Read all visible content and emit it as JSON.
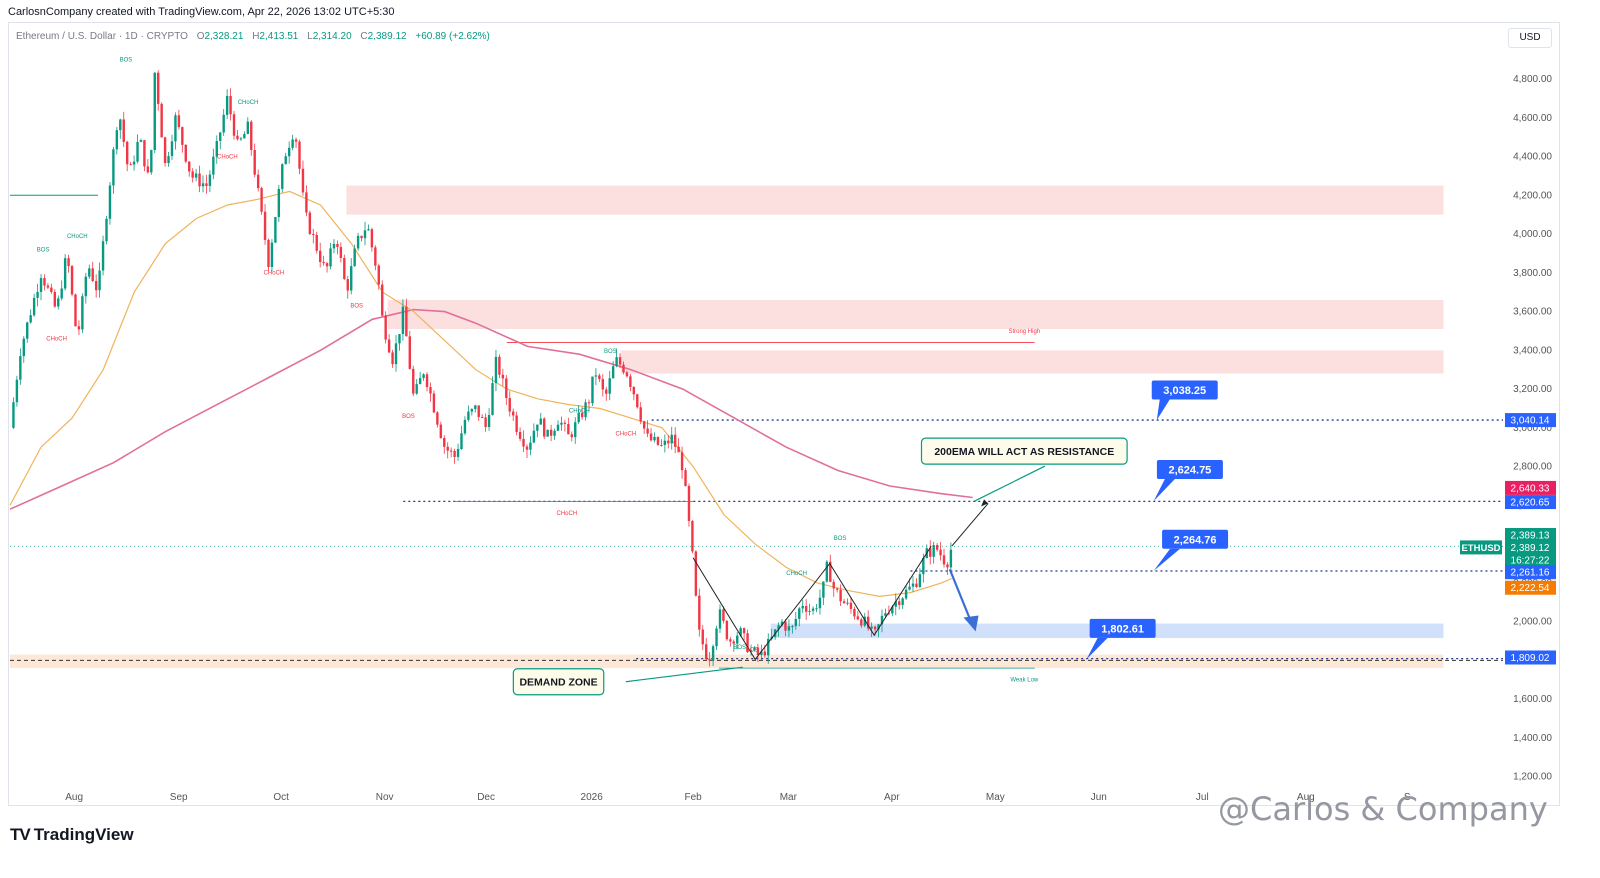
{
  "header": {
    "credit": "CarlosnCompany created with TradingView.com, Apr 22, 2026 13:02 UTC+5:30"
  },
  "legend": {
    "symbol": "Ethereum / U.S. Dollar · 1D · CRYPTO",
    "o_key": "O",
    "o": "2,328.21",
    "h_key": "H",
    "h": "2,413.51",
    "l_key": "L",
    "l": "2,314.20",
    "c_key": "C",
    "c": "2,389.12",
    "change": "+60.89 (+2.62%)"
  },
  "currency_button": "USD",
  "branding": {
    "logo": "TV",
    "name": "TradingView",
    "watermark": "@Carlos & Company"
  },
  "colors": {
    "up": "#089981",
    "down": "#f23645",
    "ema50": "#f0b35a",
    "ema200": "#e0709a",
    "supply_zone": "#fcdada",
    "demand_zone": "#fde3cf",
    "blue_zone": "#c9dcfa",
    "callout_blue": "#2962ff",
    "label_green": "#089981"
  },
  "chart_data": {
    "type": "candlestick",
    "symbol": "ETHUSD",
    "y_ticks": [
      1200,
      1400,
      1600,
      1800,
      2000,
      2200,
      2400,
      2600,
      2800,
      3000,
      3200,
      3400,
      3600,
      3800,
      4000,
      4200,
      4400,
      4600,
      4800
    ],
    "y_tick_labels": [
      "1,200.00",
      "1,400.00",
      "1,600.00",
      "1,800.00",
      "2,000.00",
      "2,200.00",
      "2,400.00",
      "2,600.00",
      "2,800.00",
      "3,000.00",
      "3,200.00",
      "3,400.00",
      "3,600.00",
      "3,800.00",
      "4,000.00",
      "4,200.00",
      "4,400.00",
      "4,600.00",
      "4,800.00"
    ],
    "x_labels": [
      {
        "label": "Aug",
        "t": 0.62
      },
      {
        "label": "Sep",
        "t": 1.63
      },
      {
        "label": "Oct",
        "t": 2.62
      },
      {
        "label": "Nov",
        "t": 3.62
      },
      {
        "label": "Dec",
        "t": 4.6
      },
      {
        "label": "2026",
        "t": 5.62
      },
      {
        "label": "Feb",
        "t": 6.6
      },
      {
        "label": "Mar",
        "t": 7.52
      },
      {
        "label": "Apr",
        "t": 8.52
      },
      {
        "label": "May",
        "t": 9.52
      },
      {
        "label": "Jun",
        "t": 10.52
      },
      {
        "label": "Jul",
        "t": 11.52
      },
      {
        "label": "Aug",
        "t": 12.52
      },
      {
        "label": "S",
        "t": 13.5
      }
    ],
    "price_path": [
      [
        0,
        3000
      ],
      [
        0.1,
        3400
      ],
      [
        0.3,
        3800
      ],
      [
        0.45,
        3600
      ],
      [
        0.55,
        3900
      ],
      [
        0.65,
        3450
      ],
      [
        0.75,
        3850
      ],
      [
        0.85,
        3700
      ],
      [
        0.95,
        4200
      ],
      [
        1.05,
        4650
      ],
      [
        1.15,
        4300
      ],
      [
        1.25,
        4500
      ],
      [
        1.35,
        4250
      ],
      [
        1.4,
        4850
      ],
      [
        1.5,
        4350
      ],
      [
        1.6,
        4600
      ],
      [
        1.75,
        4300
      ],
      [
        1.9,
        4250
      ],
      [
        2.0,
        4450
      ],
      [
        2.1,
        4700
      ],
      [
        2.2,
        4450
      ],
      [
        2.3,
        4550
      ],
      [
        2.4,
        4200
      ],
      [
        2.5,
        3850
      ],
      [
        2.55,
        4050
      ],
      [
        2.65,
        4400
      ],
      [
        2.75,
        4550
      ],
      [
        2.85,
        4100
      ],
      [
        2.95,
        3950
      ],
      [
        3.05,
        3800
      ],
      [
        3.15,
        4000
      ],
      [
        3.25,
        3700
      ],
      [
        3.35,
        3950
      ],
      [
        3.45,
        4050
      ],
      [
        3.55,
        3800
      ],
      [
        3.6,
        3550
      ],
      [
        3.7,
        3350
      ],
      [
        3.8,
        3600
      ],
      [
        3.9,
        3150
      ],
      [
        4.0,
        3300
      ],
      [
        4.1,
        3100
      ],
      [
        4.2,
        2900
      ],
      [
        4.3,
        2850
      ],
      [
        4.4,
        3050
      ],
      [
        4.5,
        3100
      ],
      [
        4.6,
        3000
      ],
      [
        4.7,
        3350
      ],
      [
        4.8,
        3150
      ],
      [
        4.9,
        3000
      ],
      [
        5.0,
        2900
      ],
      [
        5.1,
        3050
      ],
      [
        5.2,
        2950
      ],
      [
        5.3,
        3050
      ],
      [
        5.4,
        2950
      ],
      [
        5.5,
        3050
      ],
      [
        5.6,
        3150
      ],
      [
        5.65,
        3300
      ],
      [
        5.75,
        3150
      ],
      [
        5.85,
        3350
      ],
      [
        5.95,
        3300
      ],
      [
        6.05,
        3150
      ],
      [
        6.15,
        2950
      ],
      [
        6.3,
        2900
      ],
      [
        6.4,
        2950
      ],
      [
        6.5,
        2800
      ],
      [
        6.6,
        2300
      ],
      [
        6.65,
        1950
      ],
      [
        6.75,
        1800
      ],
      [
        6.85,
        2050
      ],
      [
        6.95,
        1900
      ],
      [
        7.05,
        1950
      ],
      [
        7.15,
        1850
      ],
      [
        7.25,
        1820
      ],
      [
        7.35,
        1900
      ],
      [
        7.45,
        2000
      ],
      [
        7.55,
        1950
      ],
      [
        7.65,
        2100
      ],
      [
        7.75,
        2050
      ],
      [
        7.85,
        2150
      ],
      [
        7.9,
        2300
      ],
      [
        7.95,
        2180
      ],
      [
        8.05,
        2100
      ],
      [
        8.15,
        2050
      ],
      [
        8.25,
        2000
      ],
      [
        8.35,
        1920
      ],
      [
        8.45,
        2050
      ],
      [
        8.55,
        2100
      ],
      [
        8.65,
        2150
      ],
      [
        8.75,
        2200
      ],
      [
        8.85,
        2350
      ],
      [
        8.95,
        2380
      ],
      [
        9.05,
        2300
      ],
      [
        9.1,
        2389
      ]
    ],
    "ema50": [
      [
        0,
        2600
      ],
      [
        0.3,
        2900
      ],
      [
        0.6,
        3050
      ],
      [
        0.9,
        3300
      ],
      [
        1.2,
        3700
      ],
      [
        1.5,
        3950
      ],
      [
        1.8,
        4080
      ],
      [
        2.1,
        4150
      ],
      [
        2.4,
        4180
      ],
      [
        2.7,
        4220
      ],
      [
        3.0,
        4150
      ],
      [
        3.3,
        3950
      ],
      [
        3.6,
        3700
      ],
      [
        3.9,
        3600
      ],
      [
        4.2,
        3450
      ],
      [
        4.5,
        3300
      ],
      [
        4.8,
        3200
      ],
      [
        5.1,
        3150
      ],
      [
        5.4,
        3120
      ],
      [
        5.7,
        3100
      ],
      [
        6.0,
        3050
      ],
      [
        6.3,
        3000
      ],
      [
        6.6,
        2800
      ],
      [
        6.9,
        2550
      ],
      [
        7.2,
        2400
      ],
      [
        7.5,
        2280
      ],
      [
        7.8,
        2200
      ],
      [
        8.1,
        2160
      ],
      [
        8.4,
        2130
      ],
      [
        8.7,
        2150
      ],
      [
        9.0,
        2200
      ],
      [
        9.1,
        2222.54
      ]
    ],
    "ema200": [
      [
        0,
        2580
      ],
      [
        0.5,
        2700
      ],
      [
        1.0,
        2820
      ],
      [
        1.5,
        2980
      ],
      [
        2.0,
        3120
      ],
      [
        2.5,
        3260
      ],
      [
        3.0,
        3400
      ],
      [
        3.5,
        3560
      ],
      [
        3.9,
        3610
      ],
      [
        4.2,
        3600
      ],
      [
        4.5,
        3540
      ],
      [
        5.0,
        3420
      ],
      [
        5.5,
        3380
      ],
      [
        6.0,
        3300
      ],
      [
        6.5,
        3200
      ],
      [
        7.0,
        3050
      ],
      [
        7.5,
        2900
      ],
      [
        8.0,
        2780
      ],
      [
        8.5,
        2700
      ],
      [
        9.0,
        2660
      ],
      [
        9.3,
        2640.33
      ]
    ],
    "zones": [
      {
        "name": "supply-zone-top",
        "y1": 4100,
        "y2": 4250,
        "t1": 3.25,
        "t2": 13.85,
        "kind": "supply"
      },
      {
        "name": "supply-zone-mid",
        "y1": 3510,
        "y2": 3660,
        "t1": 3.65,
        "t2": 13.85,
        "kind": "supply"
      },
      {
        "name": "supply-zone-low",
        "y1": 3280,
        "y2": 3400,
        "t1": 5.9,
        "t2": 13.85,
        "kind": "supply"
      },
      {
        "name": "blue-zone",
        "y1": 1915,
        "y2": 1990,
        "t1": 7.35,
        "t2": 13.85,
        "kind": "blue"
      },
      {
        "name": "demand-zone",
        "y1": 1760,
        "y2": 1830,
        "t1": 0,
        "t2": 13.85,
        "kind": "demand"
      }
    ],
    "levels": [
      {
        "name": "level-3040",
        "price": 3040.14,
        "t1": 6.2,
        "style": "dotted"
      },
      {
        "name": "level-2620",
        "price": 2620.65,
        "t1": 3.8,
        "style": "dotted"
      },
      {
        "name": "level-2261",
        "price": 2261.16,
        "t1": 8.7,
        "style": "dotted"
      },
      {
        "name": "level-1809",
        "price": 1809.02,
        "t1": 6.05,
        "style": "dotted"
      },
      {
        "name": "level-last",
        "price": 2389.12,
        "t1": 0,
        "style": "dotted-green"
      }
    ],
    "structure_labels": [
      {
        "text": "BOS",
        "t": 1.12,
        "p": 4890,
        "color": "green"
      },
      {
        "text": "CHoCH",
        "t": 2.3,
        "p": 4670,
        "color": "green"
      },
      {
        "text": "CHoCH",
        "t": 2.1,
        "p": 4390,
        "color": "red"
      },
      {
        "text": "BOS",
        "t": 0.32,
        "p": 3910,
        "color": "green"
      },
      {
        "text": "CHoCH",
        "t": 0.65,
        "p": 3980,
        "color": "green"
      },
      {
        "text": "CHoCH",
        "t": 2.55,
        "p": 3790,
        "color": "red"
      },
      {
        "text": "BOS",
        "t": 3.35,
        "p": 3620,
        "color": "red"
      },
      {
        "text": "CHoCH",
        "t": 0.45,
        "p": 3450,
        "color": "red"
      },
      {
        "text": "BOS",
        "t": 3.85,
        "p": 3050,
        "color": "red"
      },
      {
        "text": "CHoCH",
        "t": 5.5,
        "p": 3080,
        "color": "green"
      },
      {
        "text": "BOS",
        "t": 5.8,
        "p": 3385,
        "color": "green"
      },
      {
        "text": "CHoCH",
        "t": 5.95,
        "p": 2960,
        "color": "red"
      },
      {
        "text": "CHoCH",
        "t": 5.38,
        "p": 2550,
        "color": "red"
      },
      {
        "text": "BOS",
        "t": 8.02,
        "p": 2420,
        "color": "green"
      },
      {
        "text": "CHoCH",
        "t": 7.6,
        "p": 2240,
        "color": "green"
      },
      {
        "text": "BOS",
        "t": 7.05,
        "p": 1860,
        "color": "green"
      },
      {
        "text": "BOS",
        "t": 7.17,
        "p": 1845,
        "color": "red"
      },
      {
        "text": "Strong High",
        "t": 9.8,
        "p": 3490,
        "color": "red"
      },
      {
        "text": "Weak Low",
        "t": 9.8,
        "p": 1690,
        "color": "green"
      }
    ],
    "callouts": [
      {
        "text": "3,038.25",
        "t": 11.35,
        "p": 3195,
        "tip_t": 11.08,
        "tip_p": 3040
      },
      {
        "text": "2,624.75",
        "t": 11.4,
        "p": 2785,
        "tip_t": 11.05,
        "tip_p": 2622
      },
      {
        "text": "2,264.76",
        "t": 11.45,
        "p": 2425,
        "tip_t": 11.05,
        "tip_p": 2262
      },
      {
        "text": "1,802.61",
        "t": 10.75,
        "p": 1965,
        "tip_t": 10.4,
        "tip_p": 1805
      }
    ],
    "notes": [
      {
        "text": "200EMA WILL ACT AS RESISTANCE",
        "t": 9.8,
        "p": 2880
      },
      {
        "text": "DEMAND ZONE",
        "t": 5.3,
        "p": 1690
      }
    ],
    "price_badges": [
      {
        "text": "3,040.14",
        "p": 3040,
        "color": "#2962ff"
      },
      {
        "text": "2,640.33",
        "p": 2690,
        "color": "#e91e63"
      },
      {
        "text": "2,620.65",
        "p": 2617,
        "color": "#2962ff"
      },
      {
        "text": "2,389.13",
        "p": 2447,
        "color": "#089981"
      },
      {
        "text": "2,389.12",
        "p": 2383,
        "color": "#089981"
      },
      {
        "text": "16:27:22",
        "p": 2318,
        "color": "#089981"
      },
      {
        "text": "2,261.16",
        "p": 2255,
        "color": "#2962ff"
      },
      {
        "text": "2,222.54",
        "p": 2175,
        "color": "#f57c00"
      },
      {
        "text": "1,809.02",
        "p": 1815,
        "color": "#2962ff"
      }
    ],
    "symbol_badge": "ETHUSD"
  }
}
